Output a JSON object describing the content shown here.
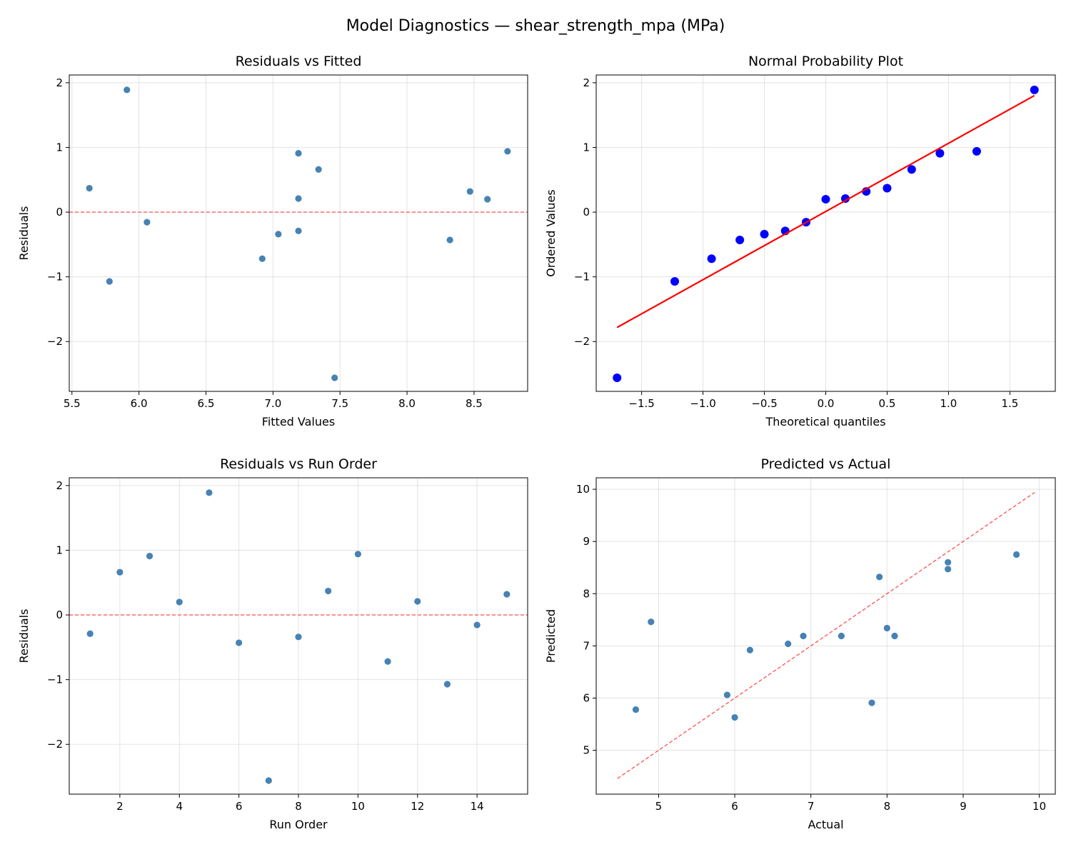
{
  "title": "Model Diagnostics — shear_strength_mpa (MPa)",
  "colors": {
    "point": "#4682b4",
    "ref_line": "#ff0000",
    "qq_point": "#0000ff",
    "qq_line": "#ff0000",
    "grid": "#b0b0b0"
  },
  "chart_data": [
    {
      "type": "scatter",
      "title": "Residuals vs Fitted",
      "xlabel": "Fitted Values",
      "ylabel": "Residuals",
      "xlim": [
        5.48,
        8.9
      ],
      "ylim": [
        -2.77,
        2.12
      ],
      "xticks": [
        5.5,
        6.0,
        6.5,
        7.0,
        7.5,
        8.0,
        8.5
      ],
      "xtick_labels": [
        "5.5",
        "6.0",
        "6.5",
        "7.0",
        "7.5",
        "8.0",
        "8.5"
      ],
      "yticks": [
        -2,
        -1,
        0,
        1,
        2
      ],
      "ytick_labels": [
        "−2",
        "−1",
        "0",
        "1",
        "2"
      ],
      "grid": true,
      "reference_line": {
        "type": "horizontal",
        "y": 0,
        "style": "dashed"
      },
      "x": [
        7.19,
        7.34,
        7.19,
        8.6,
        5.91,
        8.32,
        7.46,
        7.04,
        5.63,
        8.75,
        6.92,
        7.19,
        5.78,
        6.06,
        8.47
      ],
      "y": [
        -0.29,
        0.66,
        0.91,
        0.2,
        1.89,
        -0.43,
        -2.56,
        -0.34,
        0.37,
        0.94,
        -0.72,
        0.21,
        -1.07,
        -0.155,
        0.32
      ]
    },
    {
      "type": "scatter",
      "title": "Normal Probability Plot",
      "xlabel": "Theoretical quantiles",
      "ylabel": "Ordered Values",
      "xlim": [
        -1.87,
        1.87
      ],
      "ylim": [
        -2.77,
        2.12
      ],
      "xticks": [
        -1.5,
        -1.0,
        -0.5,
        0.0,
        0.5,
        1.0,
        1.5
      ],
      "xtick_labels": [
        "−1.5",
        "−1.0",
        "−0.5",
        "0.0",
        "0.5",
        "1.0",
        "1.5"
      ],
      "yticks": [
        -2,
        -1,
        0,
        1,
        2
      ],
      "ytick_labels": [
        "−2",
        "−1",
        "0",
        "1",
        "2"
      ],
      "grid": true,
      "fit_line": {
        "slope": 1.054,
        "intercept": 0.01,
        "x_range": [
          -1.7,
          1.7
        ]
      },
      "x": [
        -1.7,
        -1.23,
        -0.93,
        -0.7,
        -0.5,
        -0.33,
        -0.16,
        0.0,
        0.16,
        0.33,
        0.5,
        0.7,
        0.93,
        1.23,
        1.7
      ],
      "y": [
        -2.56,
        -1.07,
        -0.72,
        -0.43,
        -0.34,
        -0.29,
        -0.155,
        0.2,
        0.21,
        0.32,
        0.37,
        0.66,
        0.91,
        0.94,
        1.89
      ]
    },
    {
      "type": "scatter",
      "title": "Residuals vs Run Order",
      "xlabel": "Run Order",
      "ylabel": "Residuals",
      "xlim": [
        0.3,
        15.7
      ],
      "ylim": [
        -2.77,
        2.12
      ],
      "xticks": [
        2,
        4,
        6,
        8,
        10,
        12,
        14
      ],
      "xtick_labels": [
        "2",
        "4",
        "6",
        "8",
        "10",
        "12",
        "14"
      ],
      "yticks": [
        -2,
        -1,
        0,
        1,
        2
      ],
      "ytick_labels": [
        "−2",
        "−1",
        "0",
        "1",
        "2"
      ],
      "grid": true,
      "reference_line": {
        "type": "horizontal",
        "y": 0,
        "style": "dashed"
      },
      "x": [
        1,
        2,
        3,
        4,
        5,
        6,
        7,
        8,
        9,
        10,
        11,
        12,
        13,
        14,
        15
      ],
      "y": [
        -0.29,
        0.66,
        0.91,
        0.2,
        1.89,
        -0.43,
        -2.56,
        -0.34,
        0.37,
        0.94,
        -0.72,
        0.21,
        -1.07,
        -0.155,
        0.32
      ]
    },
    {
      "type": "scatter",
      "title": "Predicted vs Actual",
      "xlabel": "Actual",
      "ylabel": "Predicted",
      "xlim": [
        4.18,
        10.21
      ],
      "ylim": [
        4.16,
        10.22
      ],
      "xticks": [
        5,
        6,
        7,
        8,
        9,
        10
      ],
      "xtick_labels": [
        "5",
        "6",
        "7",
        "8",
        "9",
        "10"
      ],
      "yticks": [
        5,
        6,
        7,
        8,
        9,
        10
      ],
      "ytick_labels": [
        "5",
        "6",
        "7",
        "8",
        "9",
        "10"
      ],
      "grid": true,
      "reference_line": {
        "type": "diagonal",
        "range": [
          4.46,
          9.94
        ],
        "style": "dashed"
      },
      "x": [
        6.9,
        8.0,
        8.1,
        8.8,
        7.8,
        7.9,
        4.9,
        6.7,
        6.0,
        9.7,
        6.2,
        7.4,
        4.7,
        5.9,
        8.8
      ],
      "y": [
        7.19,
        7.34,
        7.19,
        8.6,
        5.91,
        8.32,
        7.46,
        7.04,
        5.63,
        8.75,
        6.92,
        7.19,
        5.78,
        6.06,
        8.47
      ]
    }
  ]
}
